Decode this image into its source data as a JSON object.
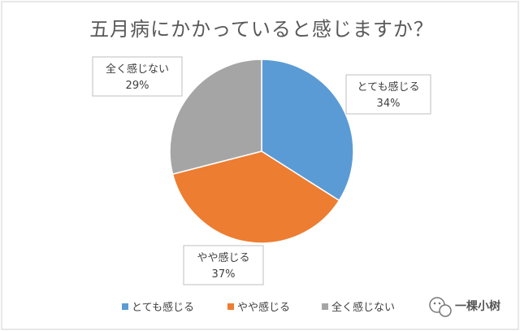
{
  "chart_data": {
    "type": "pie",
    "title": "五月病にかかっていると感じますか？",
    "slices": [
      {
        "label": "とても感じる",
        "value": 34,
        "value_text": "34%",
        "color": "#5b9bd5"
      },
      {
        "label": "やや感じる",
        "value": 37,
        "value_text": "37%",
        "color": "#ed7d31"
      },
      {
        "label": "全く感じない",
        "value": 29,
        "value_text": "29%",
        "color": "#a5a5a5"
      }
    ],
    "legend_position": "bottom",
    "start_angle": "12 o'clock",
    "direction": "clockwise"
  },
  "watermark": {
    "text": "一棵小树",
    "icon": "wechat-icon"
  }
}
